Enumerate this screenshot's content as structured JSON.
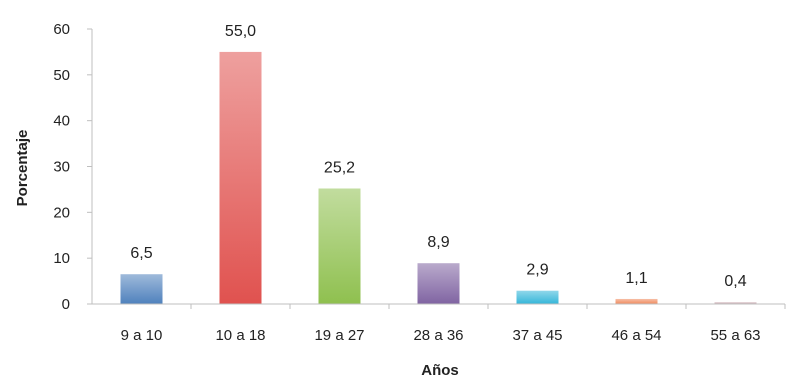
{
  "chart_data": {
    "type": "bar",
    "title": "",
    "xlabel": "Años",
    "ylabel": "Porcentaje",
    "ylim": [
      0,
      60
    ],
    "yticks": [
      "0",
      "10",
      "20",
      "30",
      "40",
      "50",
      "60"
    ],
    "ytick_values": [
      0,
      10,
      20,
      30,
      40,
      50,
      60
    ],
    "grid": false,
    "legend": "none",
    "categories": [
      "9 a 10",
      "10 a 18",
      "19 a 27",
      "28 a 36",
      "37 a 45",
      "46 a 54",
      "55 a 63"
    ],
    "values": [
      6.5,
      55.0,
      25.2,
      8.9,
      2.9,
      1.1,
      0.4
    ],
    "value_labels": [
      "6,5",
      "55,0",
      "25,2",
      "8,9",
      "2,9",
      "1,1",
      "0,4"
    ],
    "colors": [
      "#4f81bd",
      "#e0524f",
      "#8fc04f",
      "#8064a2",
      "#35b6d9",
      "#f08a5d",
      "#c9a9b0"
    ]
  }
}
